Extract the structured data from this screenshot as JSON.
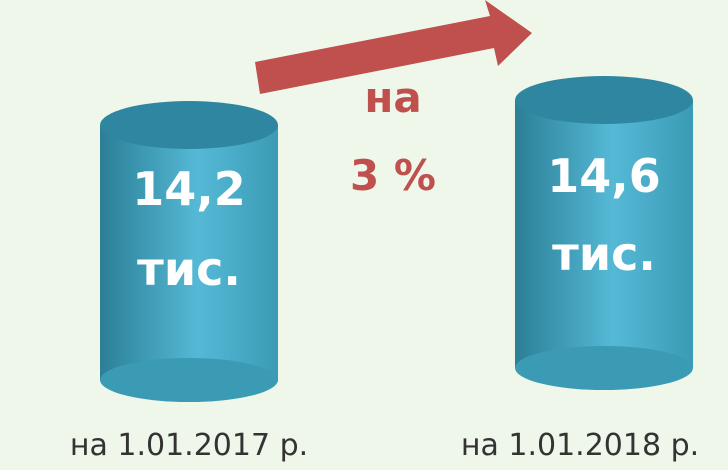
{
  "items": [
    {
      "value": "14,2",
      "unit": "тис.",
      "date": "на 1.01.2017 р."
    },
    {
      "value": "14,6",
      "unit": "тис.",
      "date": "на 1.01.2018 р."
    }
  ],
  "change": {
    "prefix": "на",
    "value": "3 %"
  }
}
